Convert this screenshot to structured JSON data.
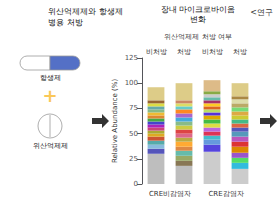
{
  "chart_data": {
    "type": "bar",
    "stacked": true,
    "title": "<연구",
    "subtitle": "장내 마이크로바이옴\n변화",
    "annotations": [
      "위산억제제와 항생제\n병용 처방",
      "항생제",
      "+",
      "위산억제제",
      "위산억제제 처방 여부",
      "CRE비감염자",
      "CRE감염자"
    ],
    "categories": [
      "비처방",
      "처방",
      "비처방",
      "처방"
    ],
    "ylabel": "Relative Abundance (%)",
    "ylim": [
      0,
      125
    ],
    "yticks": [
      0,
      25,
      50,
      75,
      100,
      125
    ],
    "grid": false,
    "series": [
      {
        "values": [
          30,
          18,
          32,
          15
        ],
        "colors": [
          "#bebebe",
          "#bebebe",
          "#cccccc",
          "#cccccc"
        ]
      },
      {
        "values": [
          5,
          5,
          7,
          6
        ],
        "colors": [
          "#5555bb",
          "#887755",
          "#5544dd",
          "#33bbdd"
        ]
      },
      {
        "values": [
          4,
          5,
          5,
          5
        ],
        "colors": [
          "#88bbdd",
          "#99aa66",
          "#6699dd",
          "#55dd66"
        ]
      },
      {
        "values": [
          4,
          5,
          4,
          5
        ],
        "colors": [
          "#55aaaa",
          "#66bbaa",
          "#44bbcc",
          "#9955cc"
        ]
      },
      {
        "values": [
          4,
          4,
          4,
          6
        ],
        "colors": [
          "#cc5533",
          "#dd8844",
          "#dd3355",
          "#dd8800"
        ]
      },
      {
        "values": [
          3,
          5,
          4,
          5
        ],
        "colors": [
          "#ddaa22",
          "#ffaa33",
          "#bb66dd",
          "#dd3333"
        ]
      },
      {
        "values": [
          3,
          4,
          4,
          5
        ],
        "colors": [
          "#aaaa33",
          "#bbaa44",
          "#dddd44",
          "#bb55bb"
        ]
      },
      {
        "values": [
          3,
          4,
          4,
          5
        ],
        "colors": [
          "#cc4477",
          "#dd6688",
          "#44bb44",
          "#5599bb"
        ]
      },
      {
        "values": [
          3,
          4,
          4,
          4
        ],
        "colors": [
          "#aa22bb",
          "#dd4444",
          "#ddaa00",
          "#5555bb"
        ]
      },
      {
        "values": [
          3,
          4,
          3,
          4
        ],
        "colors": [
          "#4444cc",
          "#cccc44",
          "#5533dd",
          "#dd6644"
        ]
      },
      {
        "values": [
          3,
          4,
          3,
          4
        ],
        "colors": [
          "#44aa44",
          "#88bb88",
          "#bbdd66",
          "#44bb88"
        ]
      },
      {
        "values": [
          3,
          4,
          3,
          4
        ],
        "colors": [
          "#dd8833",
          "#44aadd",
          "#dd6622",
          "#cccc33"
        ]
      },
      {
        "values": [
          3,
          4,
          3,
          4
        ],
        "colors": [
          "#eebb33",
          "#aa66cc",
          "#ffcc22",
          "#ddaa44"
        ]
      },
      {
        "values": [
          3,
          4,
          3,
          4
        ],
        "colors": [
          "#88bb88",
          "#ff8822",
          "#aa3366",
          "#77dd77"
        ]
      },
      {
        "values": [
          3,
          3,
          3,
          4
        ],
        "colors": [
          "#66aaaa",
          "#66cccc",
          "#66bbaa",
          "#bbaa66"
        ]
      },
      {
        "values": [
          3,
          3,
          3,
          4
        ],
        "colors": [
          "#dddd44",
          "#dddd66",
          "#cccccc",
          "#ddddaa"
        ]
      },
      {
        "values": [
          3,
          3,
          3,
          3
        ],
        "colors": [
          "#996633",
          "#cc8866",
          "#88aa44",
          "#aa8844"
        ]
      },
      {
        "values": [
          13,
          17,
          11,
          13
        ],
        "colors": [
          "#ddcc88",
          "#ddcc88",
          "#ddbb88",
          "#ddcc88"
        ]
      }
    ]
  }
}
